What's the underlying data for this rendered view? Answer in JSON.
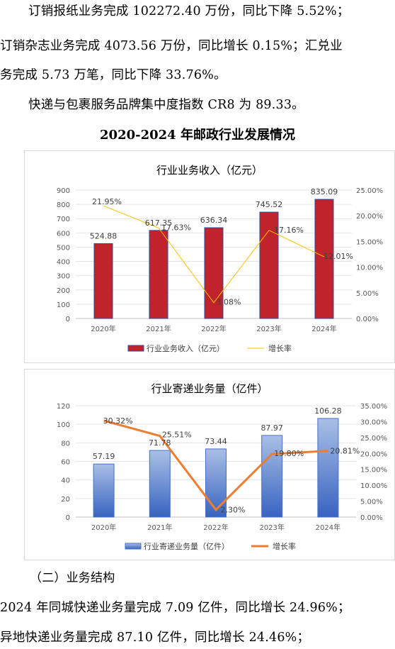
{
  "paragraphs": [
    "订销报纸业务完成 102272.40 万份，同比下降 5.52%；",
    "订销杂志业务完成 4073.56 万份，同比增长 0.15%；汇兑业",
    "务完成 5.73 万笔，同比下降 33.76%。",
    "快递与包裹服务品牌集中度指数 CR8 为 89.33。"
  ],
  "section_title": "2020-2024 年邮政行业发展情况",
  "subsection": "（二）业务结构",
  "bottom_paragraphs": [
    "2024 年同城快递业务量完成 7.09 亿件，同比增长 24.96%；",
    "异地快递业务量完成 87.10 亿件，同比增长 24.46%；"
  ],
  "chart_data": [
    {
      "type": "bar",
      "title": "行业业务收入（亿元）",
      "categories": [
        "2020年",
        "2021年",
        "2022年",
        "2023年",
        "2024年"
      ],
      "series": [
        {
          "name": "行业业务收入（亿元）",
          "type": "bar",
          "values": [
            524.88,
            617.35,
            636.34,
            745.52,
            835.09
          ],
          "labels": [
            "524.88",
            "617.35",
            "636.34",
            "745.52",
            "835.09"
          ],
          "color": "#c0232c"
        },
        {
          "name": "增长率",
          "type": "line",
          "axis": "right",
          "values": [
            21.95,
            17.63,
            3.08,
            17.16,
            12.01
          ],
          "labels": [
            "21.95%",
            "17.63%",
            "3.08%",
            "17.16%",
            "12.01%"
          ],
          "color": "#ffc000"
        }
      ],
      "left_axis": {
        "ylim": [
          0,
          900
        ],
        "ticks": [
          "0",
          "100",
          "200",
          "300",
          "400",
          "500",
          "600",
          "700",
          "800",
          "900"
        ]
      },
      "right_axis": {
        "ylim": [
          0,
          25
        ],
        "ticks": [
          "0.00%",
          "5.00%",
          "10.00%",
          "15.00%",
          "20.00%",
          "25.00%"
        ]
      },
      "legend_position": "bottom"
    },
    {
      "type": "bar",
      "title": "行业寄递业务量（亿件）",
      "categories": [
        "2020年",
        "2021年",
        "2022年",
        "2023年",
        "2024年"
      ],
      "series": [
        {
          "name": "行业寄递业务量（亿件）",
          "type": "bar",
          "values": [
            57.19,
            71.78,
            73.44,
            87.97,
            106.28
          ],
          "labels": [
            "57.19",
            "71.78",
            "73.44",
            "87.97",
            "106.28"
          ],
          "color": "#4472c4"
        },
        {
          "name": "增长率",
          "type": "line",
          "axis": "right",
          "values": [
            30.32,
            25.51,
            2.3,
            19.8,
            20.81
          ],
          "labels": [
            "30.32%",
            "25.51%",
            "2.30%",
            "19.80%",
            "20.81%"
          ],
          "color": "#ed7d31"
        }
      ],
      "left_axis": {
        "ylim": [
          0,
          120
        ],
        "ticks": [
          "0",
          "20",
          "40",
          "60",
          "80",
          "100",
          "120"
        ]
      },
      "right_axis": {
        "ylim": [
          0,
          35
        ],
        "ticks": [
          "0.00%",
          "5.00%",
          "10.00%",
          "15.00%",
          "20.00%",
          "25.00%",
          "30.00%",
          "35.00%"
        ]
      },
      "legend_position": "bottom"
    }
  ]
}
